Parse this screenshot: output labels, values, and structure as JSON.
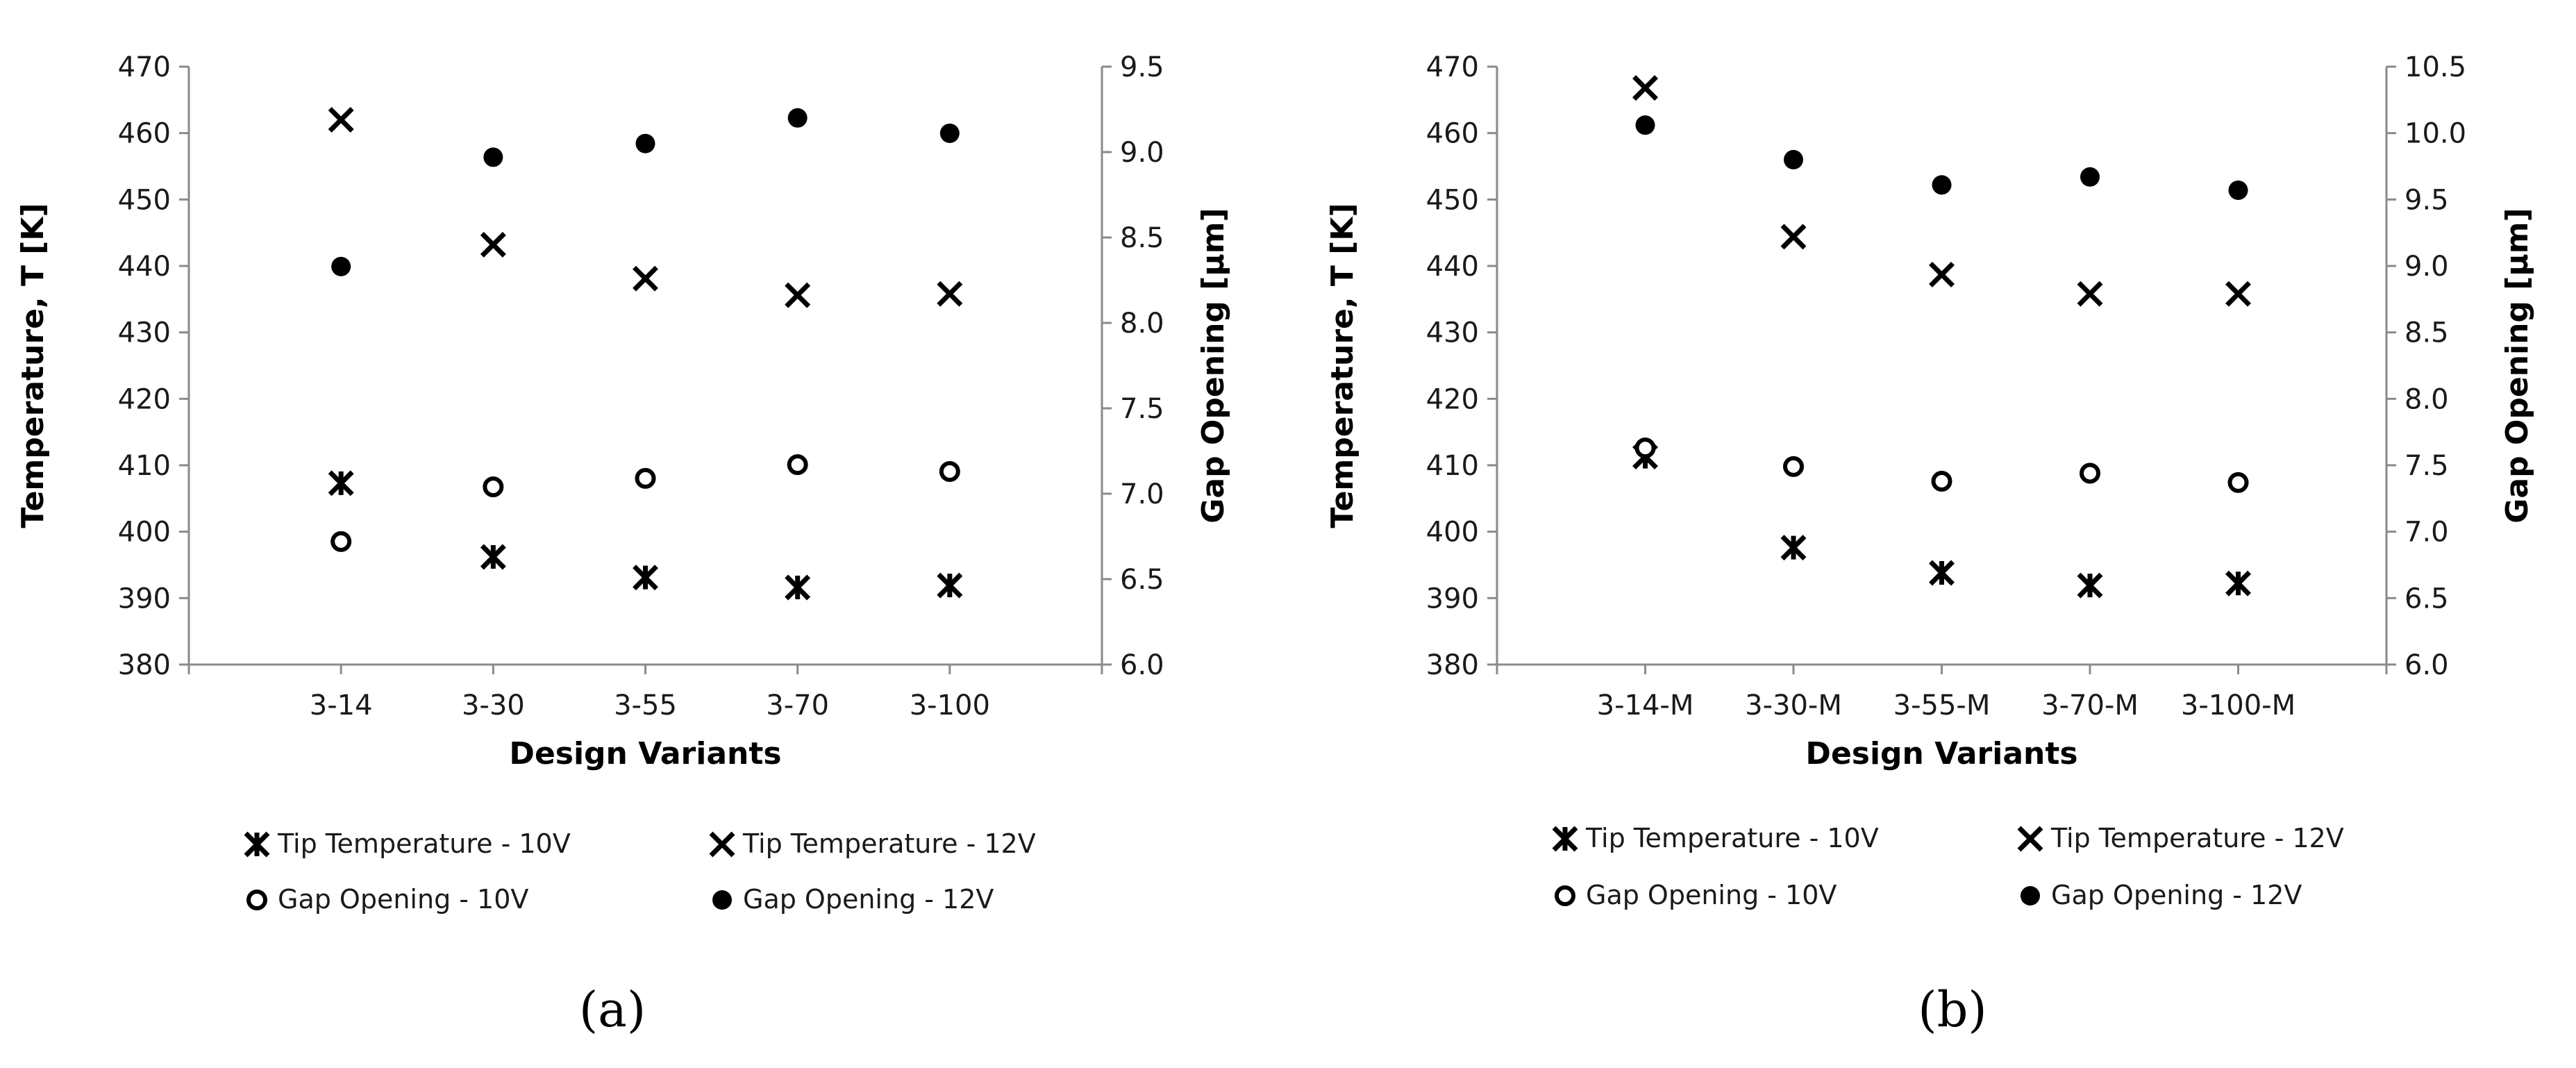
{
  "chart_data": [
    {
      "type": "scatter",
      "panel_label": "(a)",
      "categories": [
        "3-14",
        "3-30",
        "3-55",
        "3-70",
        "3-100"
      ],
      "xlabel": "Design Variants",
      "ylabel": "Temperature, T [K]",
      "y2label": "Gap Opening [µm]",
      "ylim": [
        380,
        470
      ],
      "y_ticks": [
        "380",
        "390",
        "400",
        "410",
        "420",
        "430",
        "440",
        "450",
        "460",
        "470"
      ],
      "y2lim": [
        6.0,
        9.5
      ],
      "y2_ticks": [
        "6.0",
        "6.5",
        "7.0",
        "7.5",
        "8.0",
        "8.5",
        "9.0",
        "9.5"
      ],
      "series": [
        {
          "name": "Tip Temperature - 10V",
          "marker": "asterisk",
          "axis": "left",
          "values": [
            407.3,
            396.2,
            393.1,
            391.6,
            391.9
          ]
        },
        {
          "name": "Tip Temperature - 12V",
          "marker": "x",
          "axis": "left",
          "values": [
            462.0,
            443.2,
            438.1,
            435.6,
            435.8
          ]
        },
        {
          "name": "Gap Opening - 10V",
          "marker": "circle-open",
          "axis": "right",
          "values": [
            6.72,
            7.04,
            7.09,
            7.17,
            7.13
          ]
        },
        {
          "name": "Gap Opening - 12V",
          "marker": "circle-filled",
          "axis": "right",
          "values": [
            8.33,
            8.97,
            9.05,
            9.2,
            9.11
          ]
        }
      ]
    },
    {
      "type": "scatter",
      "panel_label": "(b)",
      "categories": [
        "3-14-M",
        "3-30-M",
        "3-55-M",
        "3-70-M",
        "3-100-M"
      ],
      "xlabel": "Design Variants",
      "ylabel": "Temperature, T [K]",
      "y2label": "Gap Opening [µm]",
      "ylim": [
        380,
        470
      ],
      "y_ticks": [
        "380",
        "390",
        "400",
        "410",
        "420",
        "430",
        "440",
        "450",
        "460",
        "470"
      ],
      "y2lim": [
        6.0,
        10.5
      ],
      "y2_ticks": [
        "6.0",
        "6.5",
        "7.0",
        "7.5",
        "8.0",
        "8.5",
        "9.0",
        "9.5",
        "10.0",
        "10.5"
      ],
      "series": [
        {
          "name": "Tip Temperature - 10V",
          "marker": "asterisk",
          "axis": "left",
          "values": [
            411.3,
            397.6,
            393.8,
            391.9,
            392.2
          ]
        },
        {
          "name": "Tip Temperature - 12V",
          "marker": "x",
          "axis": "left",
          "values": [
            466.8,
            444.4,
            438.7,
            435.8,
            435.8
          ]
        },
        {
          "name": "Gap Opening - 10V",
          "marker": "circle-open",
          "axis": "right",
          "values": [
            7.63,
            7.49,
            7.38,
            7.44,
            7.37
          ]
        },
        {
          "name": "Gap Opening - 12V",
          "marker": "circle-filled",
          "axis": "right",
          "values": [
            10.06,
            9.8,
            9.61,
            9.67,
            9.57
          ]
        }
      ]
    }
  ]
}
